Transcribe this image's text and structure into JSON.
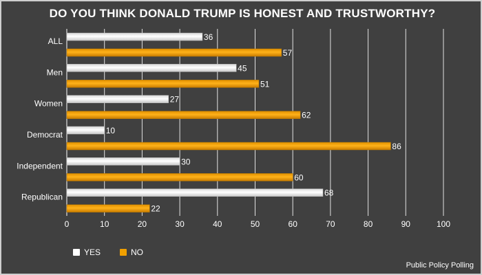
{
  "chart_data": {
    "type": "bar",
    "orientation": "horizontal",
    "title": "DO YOU THINK DONALD TRUMP IS HONEST AND TRUSTWORTHY?",
    "categories": [
      "ALL",
      "Men",
      "Women",
      "Democrat",
      "Independent",
      "Republican"
    ],
    "series": [
      {
        "name": "YES",
        "values": [
          36,
          45,
          27,
          10,
          30,
          68
        ],
        "color": "#ffffff"
      },
      {
        "name": "NO",
        "values": [
          57,
          51,
          62,
          86,
          60,
          22
        ],
        "color": "#f0a000"
      }
    ],
    "xlim": [
      0,
      100
    ],
    "x_ticks": [
      0,
      10,
      20,
      30,
      40,
      50,
      60,
      70,
      80,
      90,
      100
    ],
    "grid": true,
    "legend_position": "bottom-left",
    "source": "Public Policy Polling"
  },
  "colors": {
    "background": "#404040",
    "yes": "#ffffff",
    "no": "#f0a000",
    "grid": "#ffffff",
    "text": "#ffffff"
  }
}
